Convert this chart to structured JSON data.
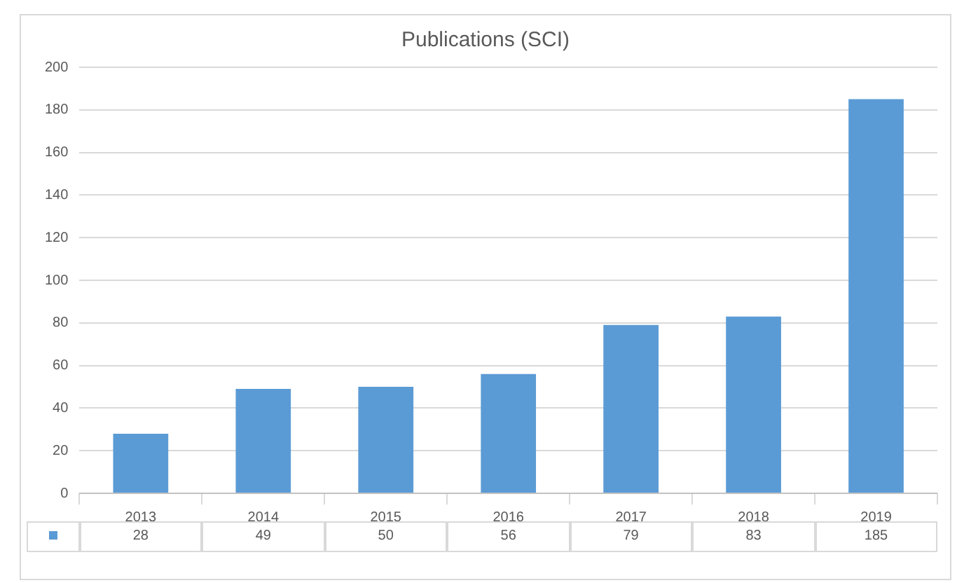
{
  "chart_data": {
    "type": "bar",
    "title": "Publications (SCI)",
    "categories": [
      "2013",
      "2014",
      "2015",
      "2016",
      "2017",
      "2018",
      "2019"
    ],
    "values": [
      28,
      49,
      50,
      56,
      79,
      83,
      185
    ],
    "color": "#5b9bd5",
    "ylim": [
      0,
      200
    ],
    "yticks": [
      0,
      20,
      40,
      60,
      80,
      100,
      120,
      140,
      160,
      180,
      200
    ],
    "grid": "y",
    "data_labels": true
  }
}
